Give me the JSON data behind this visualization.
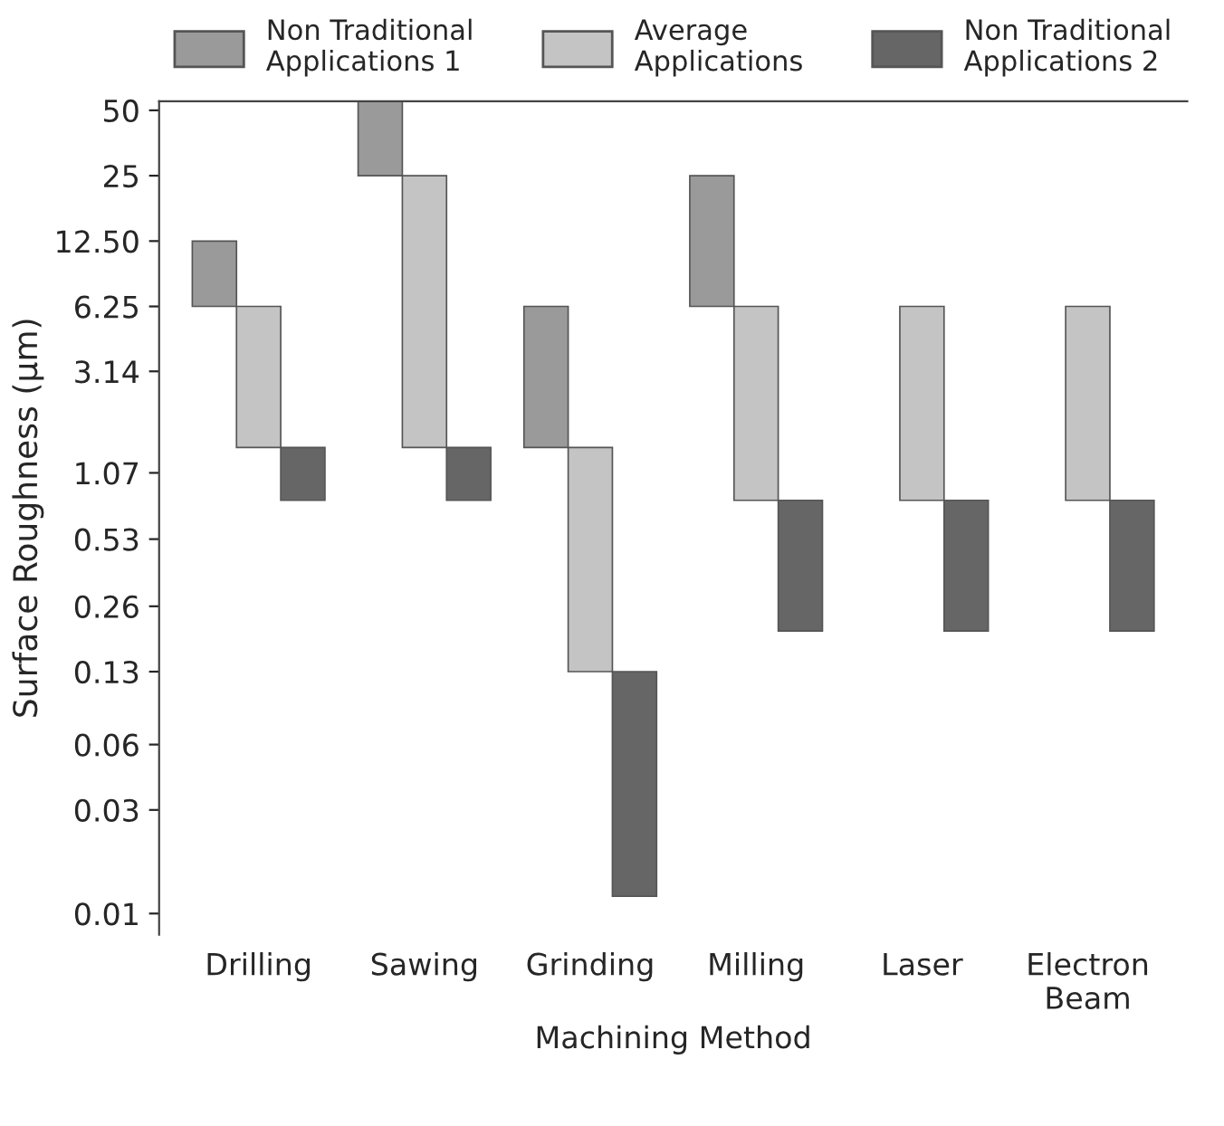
{
  "chart_data": {
    "type": "bar",
    "xlabel": "Machining Method",
    "ylabel": "Surface Roughness (µm)",
    "categories": [
      "Drilling",
      "Sawing",
      "Grinding",
      "Milling",
      "Laser",
      "Electron\nBeam"
    ],
    "series": [
      {
        "name": "Non Traditional\nApplications 1",
        "color": "#9a9a9a",
        "base": [
          6.25,
          25,
          1.4,
          6.25,
          null,
          null
        ],
        "values": [
          6.25,
          30,
          4.85,
          18.75,
          null,
          null
        ]
      },
      {
        "name": "Average\nApplications",
        "color": "#c4c4c4",
        "base": [
          1.4,
          1.4,
          0.13,
          0.8,
          0.8,
          0.8
        ],
        "values": [
          4.85,
          23.6,
          1.27,
          5.45,
          5.45,
          5.45
        ]
      },
      {
        "name": "Non Traditional\nApplications 2",
        "color": "#666666",
        "base": [
          0.8,
          0.8,
          0.012,
          0.2,
          0.2,
          0.2
        ],
        "values": [
          0.6,
          0.6,
          0.118,
          0.6,
          0.6,
          0.6
        ]
      }
    ],
    "log": true,
    "ylim": [
      0.008,
      55
    ],
    "yticks": [
      {
        "value": 50,
        "label": "50"
      },
      {
        "value": 25,
        "label": "25"
      },
      {
        "value": 12.5,
        "label": "12.50"
      },
      {
        "value": 6.25,
        "label": "6.25"
      },
      {
        "value": 3.14,
        "label": "3.14"
      },
      {
        "value": 1.07,
        "label": "1.07"
      },
      {
        "value": 0.53,
        "label": "0.53"
      },
      {
        "value": 0.26,
        "label": "0.26"
      },
      {
        "value": 0.13,
        "label": "0.13"
      },
      {
        "value": 0.06,
        "label": "0.06"
      },
      {
        "value": 0.03,
        "label": "0.03"
      },
      {
        "value": 0.01,
        "label": "0.01"
      }
    ],
    "grid": false,
    "legend": "top"
  }
}
